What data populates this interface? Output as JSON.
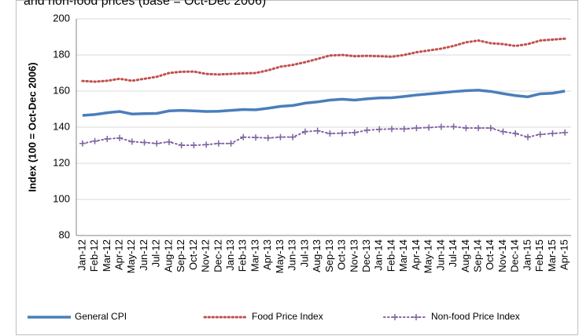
{
  "chart_data": {
    "type": "line",
    "title": "and non-food prices (base = Oct-Dec 2006)",
    "ylabel": "Index (100 = Oct-Dec 2006)",
    "categories": [
      "Jan-12",
      "Feb-12",
      "Mar-12",
      "Apr-12",
      "May-12",
      "Jun-12",
      "Jul-12",
      "Aug-12",
      "Sep-12",
      "Oct-12",
      "Nov-12",
      "Dec-12",
      "Jan-13",
      "Feb-13",
      "Mar-13",
      "Apr-13",
      "May-13",
      "Jun-13",
      "Jul-13",
      "Aug-13",
      "Sep-13",
      "Oct-13",
      "Nov-13",
      "Dec-13",
      "Jan-14",
      "Feb-14",
      "Mar-14",
      "Apr-14",
      "May-14",
      "Jun-14",
      "Jul-14",
      "Aug-14",
      "Sep-14",
      "Oct-14",
      "Nov-14",
      "Dec-14",
      "Jan-15",
      "Feb-15",
      "Mar-15",
      "Apr-15"
    ],
    "series": [
      {
        "name": "General CPI",
        "color": "#4a7ebb",
        "values": [
          146.5,
          147,
          148,
          148.7,
          147.3,
          147.5,
          147.6,
          149,
          149.3,
          149,
          148.7,
          148.8,
          149.3,
          149.8,
          149.6,
          150.5,
          151.5,
          152,
          153.3,
          154,
          155,
          155.5,
          155,
          155.7,
          156.2,
          156.3,
          157,
          157.8,
          158.4,
          159,
          159.7,
          160.2,
          160.5,
          159.8,
          158.6,
          157.5,
          156.8,
          158.5,
          158.8,
          160
        ]
      },
      {
        "name": "Food Price Index",
        "color": "#c0504d",
        "values": [
          165.6,
          165.2,
          165.7,
          166.8,
          165.7,
          166.8,
          167.9,
          170,
          170.7,
          170.8,
          169.5,
          169.2,
          169.5,
          169.8,
          170,
          171.5,
          173.5,
          174.5,
          176,
          177.8,
          179.7,
          180,
          179.3,
          179.5,
          179.3,
          179,
          180,
          181.5,
          182.5,
          183.5,
          185,
          187,
          188,
          186.5,
          186,
          185,
          186,
          188,
          188.5,
          189
        ]
      },
      {
        "name": "Non-food Price Index",
        "color": "#8064a2",
        "values": [
          131,
          132.3,
          133.5,
          134,
          132,
          131.5,
          131,
          131.8,
          130,
          130,
          130.3,
          131,
          131,
          134.5,
          134.3,
          134,
          134.5,
          134.5,
          137.5,
          138,
          136.5,
          136.7,
          137,
          138.3,
          138.8,
          139,
          139,
          139.5,
          139.8,
          140.2,
          140.3,
          139.5,
          139.5,
          139.5,
          137.5,
          136.5,
          134.5,
          136,
          136.5,
          137
        ]
      }
    ],
    "ylim": [
      80,
      200
    ],
    "yticks": [
      80,
      100,
      120,
      140,
      160,
      180,
      200
    ],
    "grid": true,
    "legend": "bottom"
  }
}
